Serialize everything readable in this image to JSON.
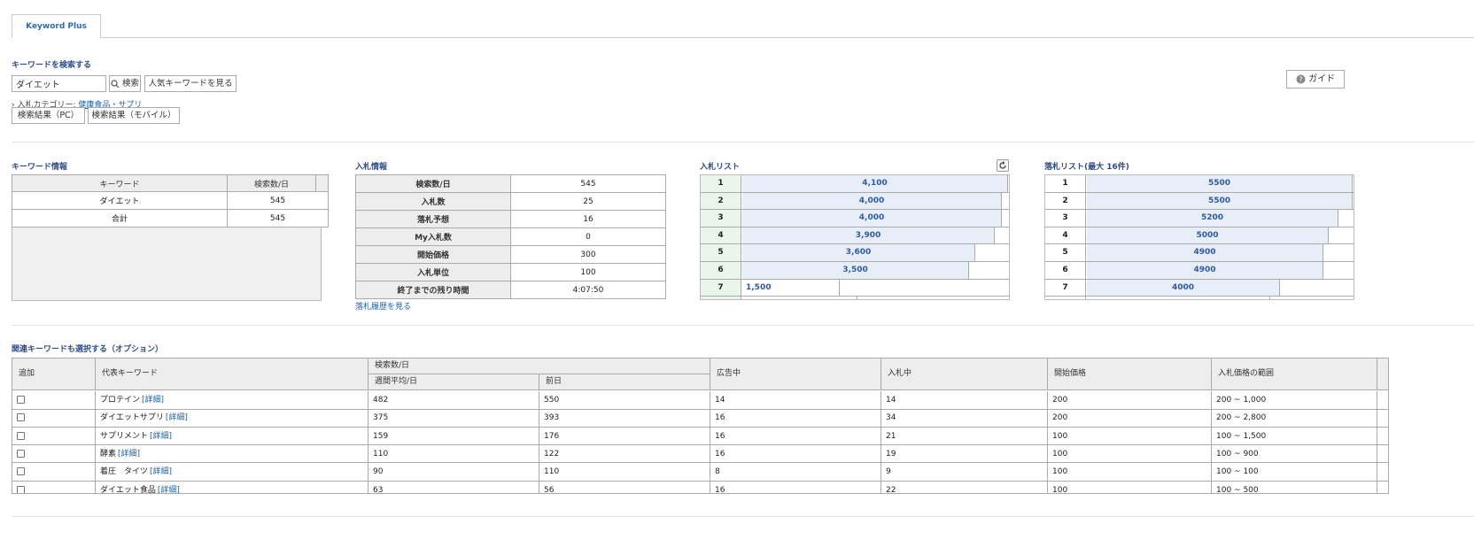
{
  "tab": {
    "label": "Keyword Plus"
  },
  "search": {
    "section_title": "キーワードを検索する",
    "value": "ダイエット",
    "search_label": "検索",
    "popular_label": "人気キーワードを見る",
    "category_prefix": "入札カテゴリー:",
    "category_link": "健康食品・サプリ",
    "result_pc": "検索結果（PC）",
    "result_mobile": "検索結果（モバイル）"
  },
  "guide": {
    "label": "ガイド"
  },
  "keyword_info": {
    "title": "キーワード情報",
    "headers": [
      "キーワード",
      "検索数/日"
    ],
    "rows": [
      {
        "keyword": "ダイエット",
        "count": "545"
      },
      {
        "keyword": "合計",
        "count": "545"
      }
    ]
  },
  "bid_info": {
    "title": "入札情報",
    "rows": [
      {
        "label": "検索数/日",
        "value": "545"
      },
      {
        "label": "入札数",
        "value": "25"
      },
      {
        "label": "落札予想",
        "value": "16"
      },
      {
        "label": "My入札数",
        "value": "0"
      },
      {
        "label": "開始価格",
        "value": "300"
      },
      {
        "label": "入札単位",
        "value": "100"
      },
      {
        "label": "終了までの残り時間",
        "value": "4:07:50"
      }
    ],
    "history_link": "落札履歴を見る"
  },
  "bid_list": {
    "title": "入札リスト",
    "max_value": 4100,
    "rows": [
      {
        "rank": "1",
        "value": "4,100",
        "amount": 4100
      },
      {
        "rank": "2",
        "value": "4,000",
        "amount": 4000
      },
      {
        "rank": "3",
        "value": "4,000",
        "amount": 4000
      },
      {
        "rank": "4",
        "value": "3,900",
        "amount": 3900
      },
      {
        "rank": "5",
        "value": "3,600",
        "amount": 3600
      },
      {
        "rank": "6",
        "value": "3,500",
        "amount": 3500
      },
      {
        "rank": "7",
        "value": "1,500",
        "amount": 1500
      }
    ]
  },
  "won_list": {
    "title": "落札リスト(最大 16件)",
    "max_value": 5500,
    "rows": [
      {
        "rank": "1",
        "value": "5500",
        "amount": 5500
      },
      {
        "rank": "2",
        "value": "5500",
        "amount": 5500
      },
      {
        "rank": "3",
        "value": "5200",
        "amount": 5200
      },
      {
        "rank": "4",
        "value": "5000",
        "amount": 5000
      },
      {
        "rank": "5",
        "value": "4900",
        "amount": 4900
      },
      {
        "rank": "6",
        "value": "4900",
        "amount": 4900
      },
      {
        "rank": "7",
        "value": "4000",
        "amount": 4000
      }
    ]
  },
  "related": {
    "title": "関連キーワードも選択する（オプション）",
    "headers": {
      "add": "追加",
      "keyword": "代表キーワード",
      "search_group": "検索数/日",
      "weekly": "週間平均/日",
      "prev": "前日",
      "ads": "広告中",
      "bidding": "入札中",
      "start": "開始価格",
      "range": "入札価格の範囲"
    },
    "detail_label": "[詳細]",
    "rows": [
      {
        "keyword": "プロテイン",
        "weekly": "482",
        "prev": "550",
        "ads": "14",
        "bidding": "14",
        "start": "200",
        "range": "200 ~ 1,000"
      },
      {
        "keyword": "ダイエットサプリ",
        "weekly": "375",
        "prev": "393",
        "ads": "16",
        "bidding": "34",
        "start": "200",
        "range": "200 ~ 2,800"
      },
      {
        "keyword": "サプリメント",
        "weekly": "159",
        "prev": "176",
        "ads": "16",
        "bidding": "21",
        "start": "100",
        "range": "100 ~ 1,500"
      },
      {
        "keyword": "酵素",
        "weekly": "110",
        "prev": "122",
        "ads": "16",
        "bidding": "19",
        "start": "100",
        "range": "100 ~ 900"
      },
      {
        "keyword": "着圧　タイツ",
        "weekly": "90",
        "prev": "110",
        "ads": "8",
        "bidding": "9",
        "start": "100",
        "range": "100 ~ 100"
      },
      {
        "keyword": "ダイエット食品",
        "weekly": "63",
        "prev": "56",
        "ads": "16",
        "bidding": "22",
        "start": "100",
        "range": "100 ~ 500"
      }
    ]
  }
}
